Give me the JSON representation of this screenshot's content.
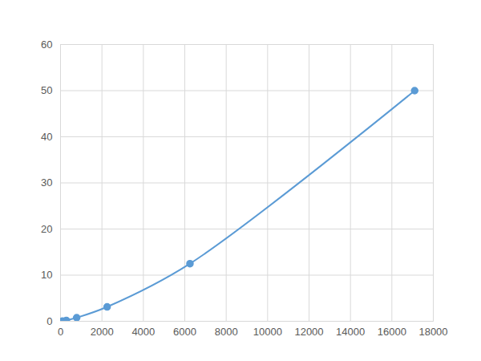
{
  "chart_data": {
    "type": "line",
    "x": [
      90,
      280,
      780,
      2250,
      6250,
      17100
    ],
    "values": [
      0.049,
      0.195,
      0.78,
      3.125,
      12.5,
      50
    ],
    "color": "#5b9bd5",
    "marker": "circle",
    "xlim": [
      0,
      18000
    ],
    "xticks": [
      0,
      2000,
      4000,
      6000,
      8000,
      10000,
      12000,
      14000,
      16000,
      18000
    ],
    "ylim": [
      0,
      60
    ],
    "yticks": [
      0,
      10,
      20,
      30,
      40,
      50,
      60
    ],
    "grid": true
  }
}
